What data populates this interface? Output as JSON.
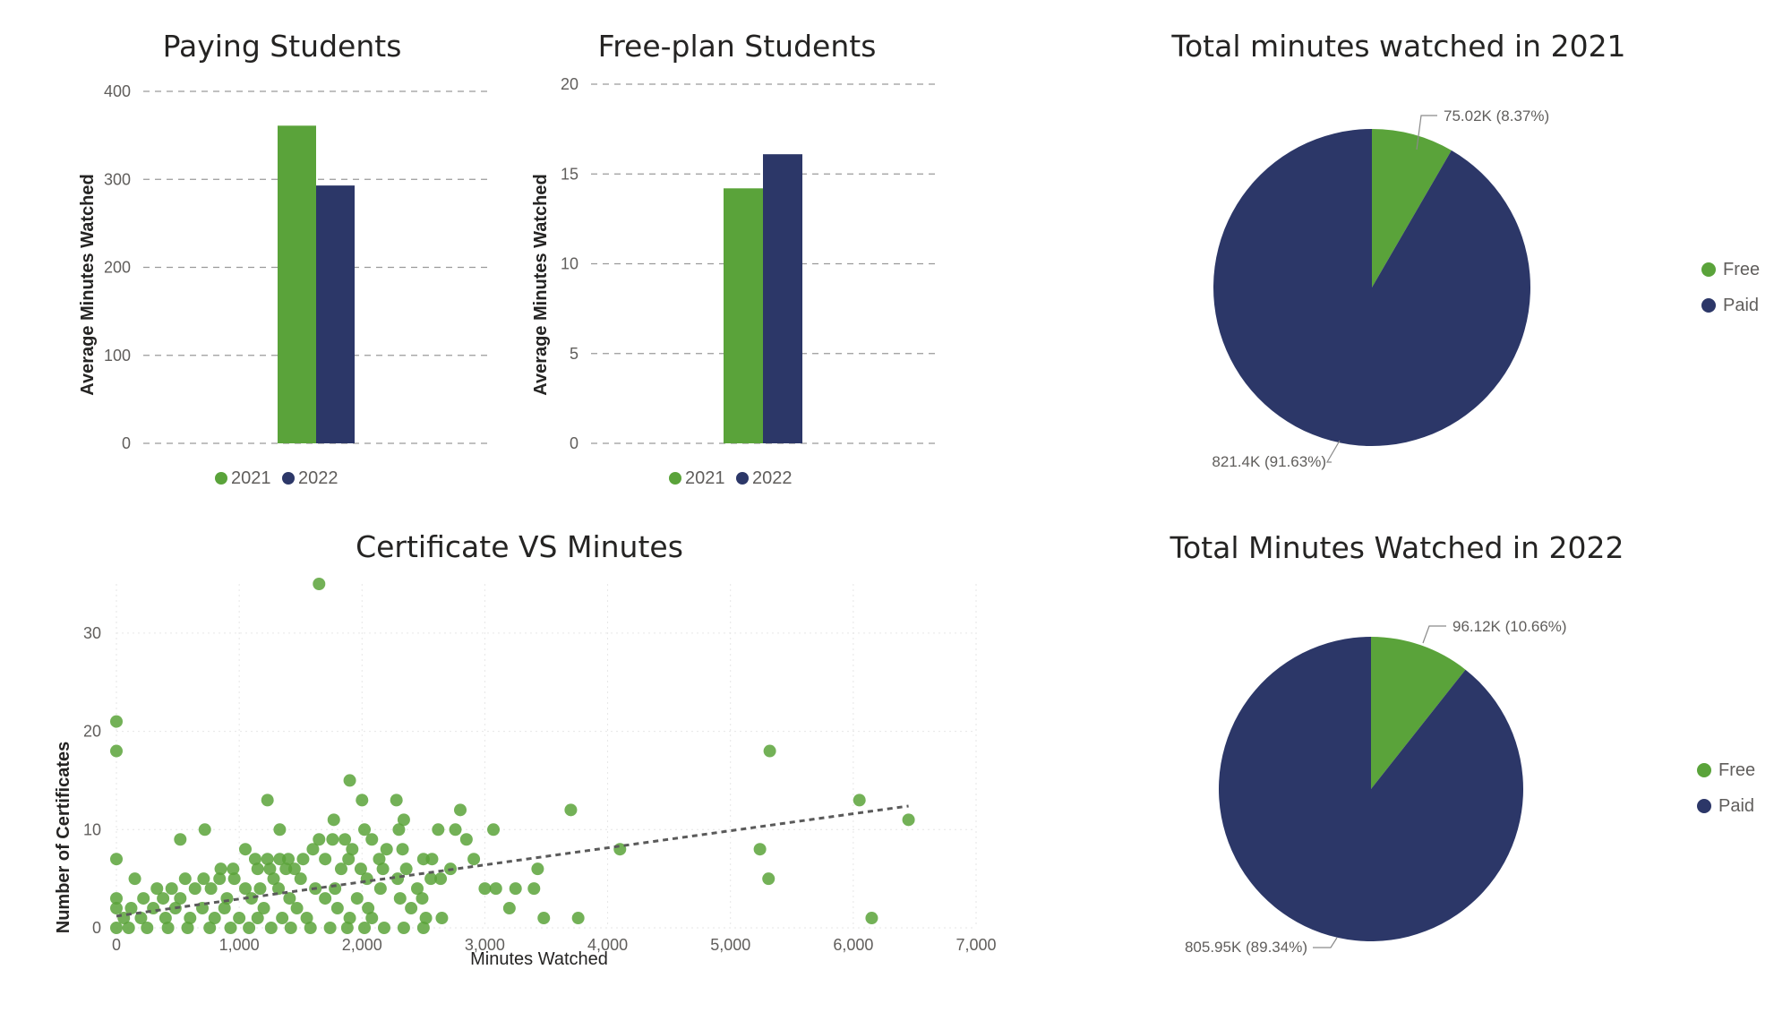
{
  "colors": {
    "free": "#5aa33a",
    "paid": "#2c3768",
    "trend": "#5a5a5a"
  },
  "chart_data": [
    {
      "id": "paying",
      "type": "bar",
      "title": "Paying Students",
      "xlabel": "",
      "ylabel": "Average Minutes Watched",
      "categories": [
        ""
      ],
      "ylim": [
        0,
        400
      ],
      "yticks": [
        0,
        100,
        200,
        300,
        400
      ],
      "series": [
        {
          "name": "2021",
          "values": [
            361
          ]
        },
        {
          "name": "2022",
          "values": [
            293
          ]
        }
      ],
      "legend": [
        "2021",
        "2022"
      ],
      "legend_position": "bottom"
    },
    {
      "id": "free",
      "type": "bar",
      "title": "Free-plan Students",
      "xlabel": "",
      "ylabel": "Average Minutes Watched",
      "categories": [
        ""
      ],
      "ylim": [
        0,
        20
      ],
      "yticks": [
        0,
        5,
        10,
        15,
        20
      ],
      "series": [
        {
          "name": "2021",
          "values": [
            14.2
          ]
        },
        {
          "name": "2022",
          "values": [
            16.1
          ]
        }
      ],
      "legend": [
        "2021",
        "2022"
      ],
      "legend_position": "bottom"
    },
    {
      "id": "pie2021",
      "type": "pie",
      "title": "Total minutes watched in 2021",
      "slices": [
        {
          "name": "Free",
          "value": 75020,
          "label": "75.02K (8.37%)"
        },
        {
          "name": "Paid",
          "value": 821400,
          "label": "821.4K (91.63%)"
        }
      ],
      "legend_position": "right"
    },
    {
      "id": "pie2022",
      "type": "pie",
      "title": "Total Minutes Watched in 2022",
      "slices": [
        {
          "name": "Free",
          "value": 96120,
          "label": "96.12K (10.66%)"
        },
        {
          "name": "Paid",
          "value": 805950,
          "label": "805.95K (89.34%)"
        }
      ],
      "legend_position": "right"
    },
    {
      "id": "scatter",
      "type": "scatter",
      "title": "Certificate VS Minutes",
      "xlabel": "Minutes Watched",
      "ylabel": "Number of Certificates",
      "xlim": [
        0,
        7000
      ],
      "ylim": [
        0,
        35
      ],
      "xticks": [
        0,
        1000,
        2000,
        3000,
        4000,
        5000,
        6000,
        7000
      ],
      "xtick_labels": [
        "0",
        "1,000",
        "2,000",
        "3,000",
        "4,000",
        "5,000",
        "6,000",
        "7,000"
      ],
      "yticks": [
        0,
        10,
        20,
        30
      ],
      "trendline": {
        "x": [
          0,
          6450
        ],
        "y": [
          1.2,
          12.4
        ]
      },
      "points": [
        [
          1650,
          35
        ],
        [
          0,
          21
        ],
        [
          0,
          18
        ],
        [
          5320,
          18
        ],
        [
          1900,
          15
        ],
        [
          2000,
          13
        ],
        [
          2280,
          13
        ],
        [
          1230,
          13
        ],
        [
          6050,
          13
        ],
        [
          2800,
          12
        ],
        [
          3700,
          12
        ],
        [
          1770,
          11
        ],
        [
          2340,
          11
        ],
        [
          6450,
          11
        ],
        [
          720,
          10
        ],
        [
          1330,
          10
        ],
        [
          2020,
          10
        ],
        [
          2300,
          10
        ],
        [
          2620,
          10
        ],
        [
          2760,
          10
        ],
        [
          3070,
          10
        ],
        [
          520,
          9
        ],
        [
          1650,
          9
        ],
        [
          1760,
          9
        ],
        [
          1860,
          9
        ],
        [
          2080,
          9
        ],
        [
          2850,
          9
        ],
        [
          1050,
          8
        ],
        [
          1600,
          8
        ],
        [
          1920,
          8
        ],
        [
          2200,
          8
        ],
        [
          2330,
          8
        ],
        [
          4100,
          8
        ],
        [
          5240,
          8
        ],
        [
          0,
          7
        ],
        [
          1130,
          7
        ],
        [
          1230,
          7
        ],
        [
          1330,
          7
        ],
        [
          1400,
          7
        ],
        [
          1520,
          7
        ],
        [
          1700,
          7
        ],
        [
          1890,
          7
        ],
        [
          2140,
          7
        ],
        [
          2500,
          7
        ],
        [
          2570,
          7
        ],
        [
          2910,
          7
        ],
        [
          150,
          5
        ],
        [
          850,
          6
        ],
        [
          950,
          6
        ],
        [
          1150,
          6
        ],
        [
          1250,
          6
        ],
        [
          1380,
          6
        ],
        [
          1450,
          6
        ],
        [
          1830,
          6
        ],
        [
          1990,
          6
        ],
        [
          2170,
          6
        ],
        [
          2360,
          6
        ],
        [
          2720,
          6
        ],
        [
          3430,
          6
        ],
        [
          560,
          5
        ],
        [
          710,
          5
        ],
        [
          840,
          5
        ],
        [
          960,
          5
        ],
        [
          1280,
          5
        ],
        [
          1500,
          5
        ],
        [
          2040,
          5
        ],
        [
          2290,
          5
        ],
        [
          2560,
          5
        ],
        [
          2640,
          5
        ],
        [
          5310,
          5
        ],
        [
          330,
          4
        ],
        [
          450,
          4
        ],
        [
          640,
          4
        ],
        [
          770,
          4
        ],
        [
          1050,
          4
        ],
        [
          1170,
          4
        ],
        [
          1320,
          4
        ],
        [
          1620,
          4
        ],
        [
          1780,
          4
        ],
        [
          2150,
          4
        ],
        [
          2450,
          4
        ],
        [
          3000,
          4
        ],
        [
          3090,
          4
        ],
        [
          3250,
          4
        ],
        [
          3400,
          4
        ],
        [
          220,
          3
        ],
        [
          380,
          3
        ],
        [
          520,
          3
        ],
        [
          900,
          3
        ],
        [
          1100,
          3
        ],
        [
          1410,
          3
        ],
        [
          1700,
          3
        ],
        [
          1960,
          3
        ],
        [
          2310,
          3
        ],
        [
          2490,
          3
        ],
        [
          0,
          3
        ],
        [
          120,
          2
        ],
        [
          300,
          2
        ],
        [
          480,
          2
        ],
        [
          700,
          2
        ],
        [
          880,
          2
        ],
        [
          1200,
          2
        ],
        [
          1470,
          2
        ],
        [
          1800,
          2
        ],
        [
          2050,
          2
        ],
        [
          2400,
          2
        ],
        [
          3200,
          2
        ],
        [
          0,
          2
        ],
        [
          60,
          1
        ],
        [
          200,
          1
        ],
        [
          400,
          1
        ],
        [
          600,
          1
        ],
        [
          800,
          1
        ],
        [
          1000,
          1
        ],
        [
          1150,
          1
        ],
        [
          1350,
          1
        ],
        [
          1550,
          1
        ],
        [
          1900,
          1
        ],
        [
          2080,
          1
        ],
        [
          2520,
          1
        ],
        [
          2650,
          1
        ],
        [
          3480,
          1
        ],
        [
          3760,
          1
        ],
        [
          6150,
          1
        ],
        [
          100,
          0
        ],
        [
          250,
          0
        ],
        [
          420,
          0
        ],
        [
          580,
          0
        ],
        [
          760,
          0
        ],
        [
          930,
          0
        ],
        [
          1080,
          0
        ],
        [
          1260,
          0
        ],
        [
          1420,
          0
        ],
        [
          1580,
          0
        ],
        [
          1740,
          0
        ],
        [
          1880,
          0
        ],
        [
          2020,
          0
        ],
        [
          2180,
          0
        ],
        [
          2340,
          0
        ],
        [
          2500,
          0
        ],
        [
          0,
          0
        ]
      ]
    }
  ]
}
